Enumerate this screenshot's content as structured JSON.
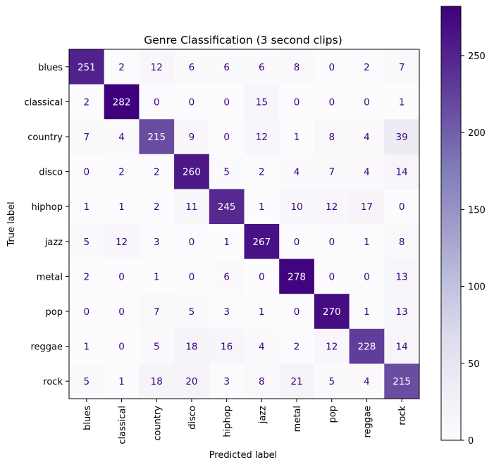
{
  "chart_data": {
    "type": "heatmap",
    "title": "Genre Classification (3 second clips)",
    "xlabel": "Predicted label",
    "ylabel": "True label",
    "x_categories": [
      "blues",
      "classical",
      "country",
      "disco",
      "hiphop",
      "jazz",
      "metal",
      "pop",
      "reggae",
      "rock"
    ],
    "y_categories": [
      "blues",
      "classical",
      "country",
      "disco",
      "hiphop",
      "jazz",
      "metal",
      "pop",
      "reggae",
      "rock"
    ],
    "values": [
      [
        251,
        2,
        12,
        6,
        6,
        6,
        8,
        0,
        2,
        7
      ],
      [
        2,
        282,
        0,
        0,
        0,
        15,
        0,
        0,
        0,
        1
      ],
      [
        7,
        4,
        215,
        9,
        0,
        12,
        1,
        8,
        4,
        39
      ],
      [
        0,
        2,
        2,
        260,
        5,
        2,
        4,
        7,
        4,
        14
      ],
      [
        1,
        1,
        2,
        11,
        245,
        1,
        10,
        12,
        17,
        0
      ],
      [
        5,
        12,
        3,
        0,
        1,
        267,
        0,
        0,
        1,
        8
      ],
      [
        2,
        0,
        1,
        0,
        6,
        0,
        278,
        0,
        0,
        13
      ],
      [
        0,
        0,
        7,
        5,
        3,
        1,
        0,
        270,
        1,
        13
      ],
      [
        1,
        0,
        5,
        18,
        16,
        4,
        2,
        12,
        228,
        14
      ],
      [
        5,
        1,
        18,
        20,
        3,
        8,
        21,
        5,
        4,
        215
      ]
    ],
    "colormap": "Purples",
    "colorbar": {
      "min": 0,
      "max": 282,
      "ticks": [
        0,
        50,
        100,
        150,
        200,
        250
      ]
    },
    "text_color_light": "#ffffff",
    "text_color_dark": "#3f007d",
    "grid": false
  }
}
